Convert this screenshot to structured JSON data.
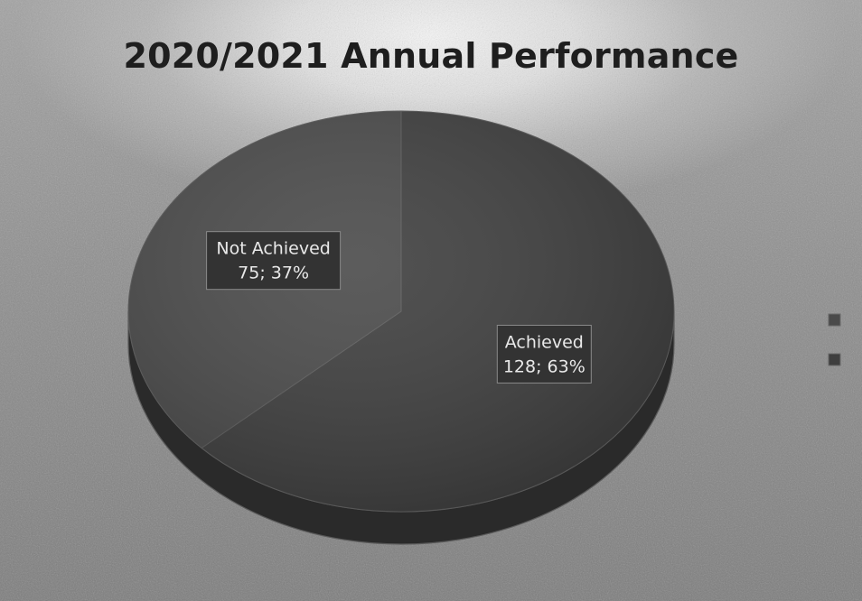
{
  "chart_data": {
    "type": "pie",
    "title": "2020/2021 Annual Performance",
    "categories": [
      "Not Achieved",
      "Achieved"
    ],
    "values": [
      75,
      128
    ],
    "percent_labels": [
      "37%",
      "63%"
    ],
    "data_labels": [
      "75; 37%",
      "128; 63%"
    ],
    "style": "3d",
    "legend": "right",
    "colors": {
      "Not Achieved": "#4a4a4a",
      "Achieved": "#3e3e3e"
    }
  }
}
